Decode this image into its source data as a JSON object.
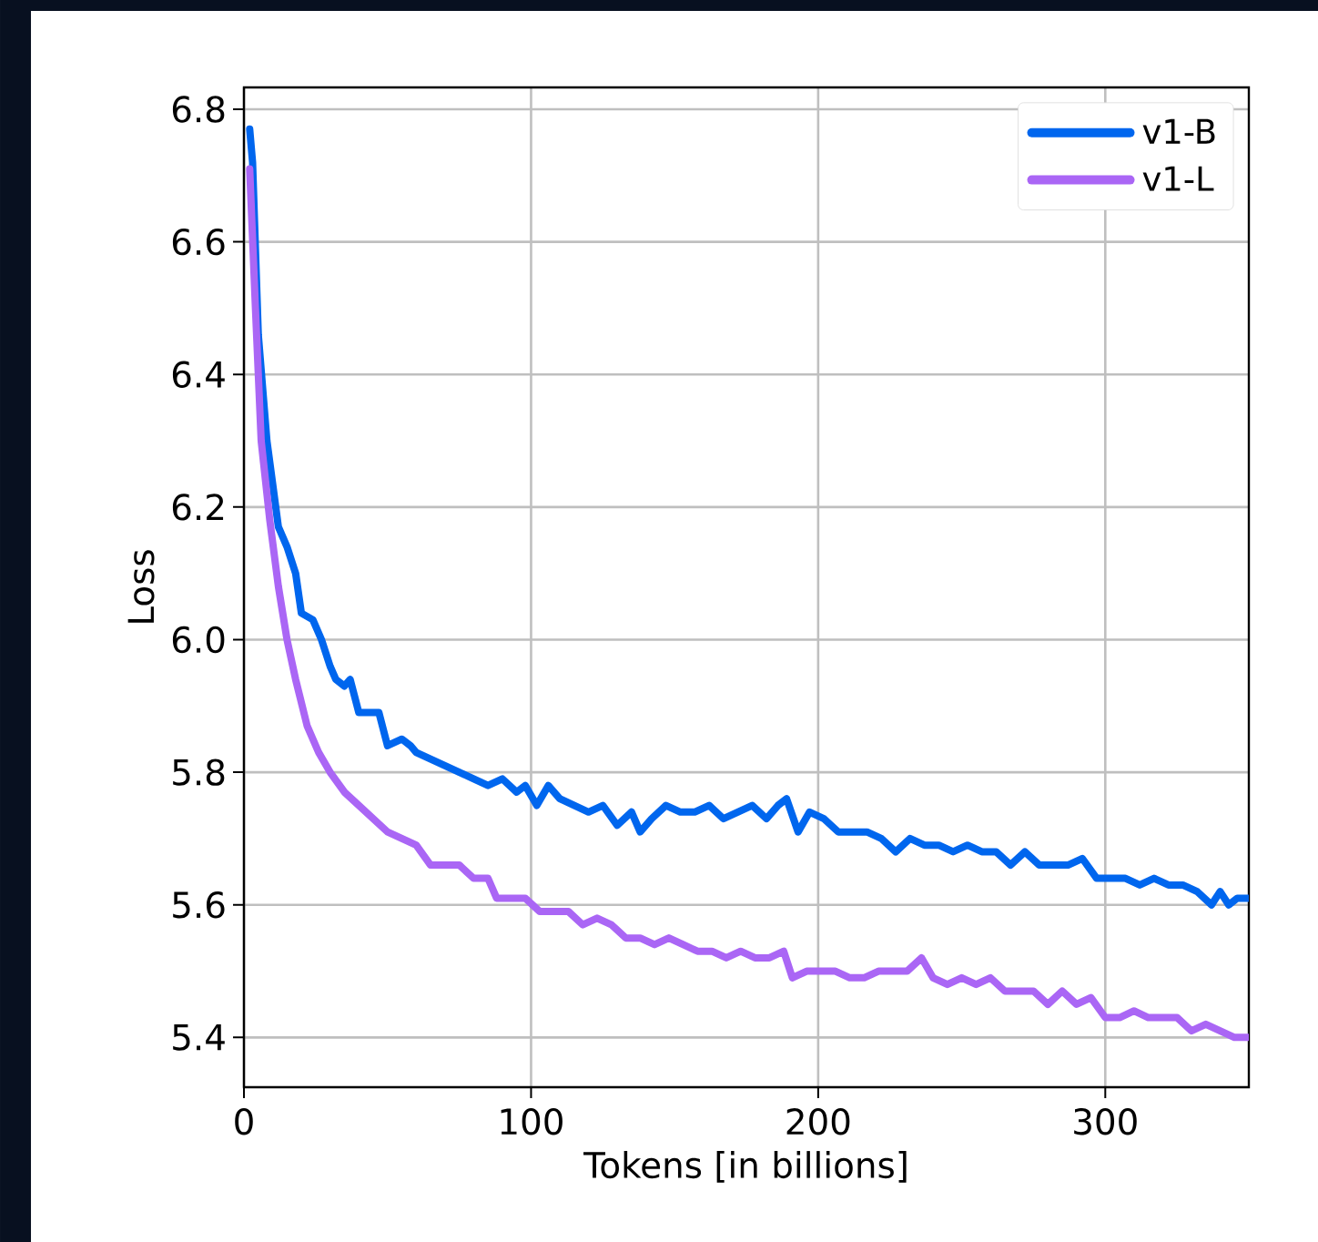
{
  "chart_data": {
    "type": "line",
    "xlabel": "Tokens [in billions]",
    "ylabel": "Loss",
    "xlim": [
      0,
      350
    ],
    "ylim": [
      5.325,
      6.833
    ],
    "xticks": [
      0,
      100,
      200,
      300
    ],
    "yticks": [
      {
        "value": 5.4,
        "label": "5.4"
      },
      {
        "value": 5.6,
        "label": "5.6"
      },
      {
        "value": 5.8,
        "label": "5.8"
      },
      {
        "value": 6.0,
        "label": "6.0"
      },
      {
        "value": 6.2,
        "label": "6.2"
      },
      {
        "value": 6.4,
        "label": "6.4"
      },
      {
        "value": 6.6,
        "label": "6.6"
      },
      {
        "value": 6.8,
        "label": "6.8"
      }
    ],
    "grid": true,
    "legend": "top right",
    "series": [
      {
        "name": "v1-B",
        "color": "#0066ee",
        "x": [
          2,
          3,
          5,
          8,
          12,
          15,
          18,
          20,
          24,
          27,
          30,
          32,
          35,
          37,
          40,
          44,
          47,
          50,
          55,
          58,
          60,
          65,
          70,
          75,
          80,
          85,
          90,
          95,
          98,
          102,
          106,
          110,
          115,
          120,
          125,
          130,
          135,
          138,
          142,
          147,
          152,
          157,
          162,
          167,
          172,
          177,
          182,
          186,
          189,
          193,
          197,
          202,
          207,
          212,
          217,
          222,
          227,
          232,
          237,
          242,
          247,
          252,
          257,
          262,
          267,
          272,
          277,
          282,
          287,
          292,
          297,
          302,
          307,
          312,
          317,
          322,
          327,
          332,
          337,
          340,
          343,
          346,
          350
        ],
        "values": [
          6.77,
          6.72,
          6.46,
          6.3,
          6.17,
          6.14,
          6.1,
          6.04,
          6.03,
          6.0,
          5.96,
          5.94,
          5.93,
          5.94,
          5.89,
          5.89,
          5.89,
          5.84,
          5.85,
          5.84,
          5.83,
          5.82,
          5.81,
          5.8,
          5.79,
          5.78,
          5.79,
          5.77,
          5.78,
          5.75,
          5.78,
          5.76,
          5.75,
          5.74,
          5.75,
          5.72,
          5.74,
          5.71,
          5.73,
          5.75,
          5.74,
          5.74,
          5.75,
          5.73,
          5.74,
          5.75,
          5.73,
          5.75,
          5.76,
          5.71,
          5.74,
          5.73,
          5.71,
          5.71,
          5.71,
          5.7,
          5.68,
          5.7,
          5.69,
          5.69,
          5.68,
          5.69,
          5.68,
          5.68,
          5.66,
          5.68,
          5.66,
          5.66,
          5.66,
          5.67,
          5.64,
          5.64,
          5.64,
          5.63,
          5.64,
          5.63,
          5.63,
          5.62,
          5.6,
          5.62,
          5.6,
          5.61,
          5.61
        ]
      },
      {
        "name": "v1-L",
        "color": "#aa66f5",
        "x": [
          2,
          4,
          6,
          9,
          12,
          15,
          18,
          22,
          26,
          30,
          35,
          40,
          45,
          50,
          55,
          60,
          65,
          70,
          75,
          80,
          85,
          88,
          93,
          98,
          103,
          108,
          113,
          118,
          123,
          128,
          133,
          138,
          143,
          148,
          153,
          158,
          163,
          168,
          173,
          178,
          183,
          188,
          191,
          196,
          201,
          206,
          211,
          216,
          221,
          226,
          231,
          236,
          240,
          245,
          250,
          255,
          260,
          265,
          270,
          275,
          280,
          285,
          290,
          295,
          300,
          305,
          310,
          315,
          320,
          325,
          330,
          335,
          340,
          345,
          350
        ],
        "values": [
          6.71,
          6.5,
          6.3,
          6.18,
          6.08,
          6.0,
          5.94,
          5.87,
          5.83,
          5.8,
          5.77,
          5.75,
          5.73,
          5.71,
          5.7,
          5.69,
          5.66,
          5.66,
          5.66,
          5.64,
          5.64,
          5.61,
          5.61,
          5.61,
          5.59,
          5.59,
          5.59,
          5.57,
          5.58,
          5.57,
          5.55,
          5.55,
          5.54,
          5.55,
          5.54,
          5.53,
          5.53,
          5.52,
          5.53,
          5.52,
          5.52,
          5.53,
          5.49,
          5.5,
          5.5,
          5.5,
          5.49,
          5.49,
          5.5,
          5.5,
          5.5,
          5.52,
          5.49,
          5.48,
          5.49,
          5.48,
          5.49,
          5.47,
          5.47,
          5.47,
          5.45,
          5.47,
          5.45,
          5.46,
          5.43,
          5.43,
          5.44,
          5.43,
          5.43,
          5.43,
          5.41,
          5.42,
          5.41,
          5.4,
          5.4
        ]
      }
    ]
  }
}
